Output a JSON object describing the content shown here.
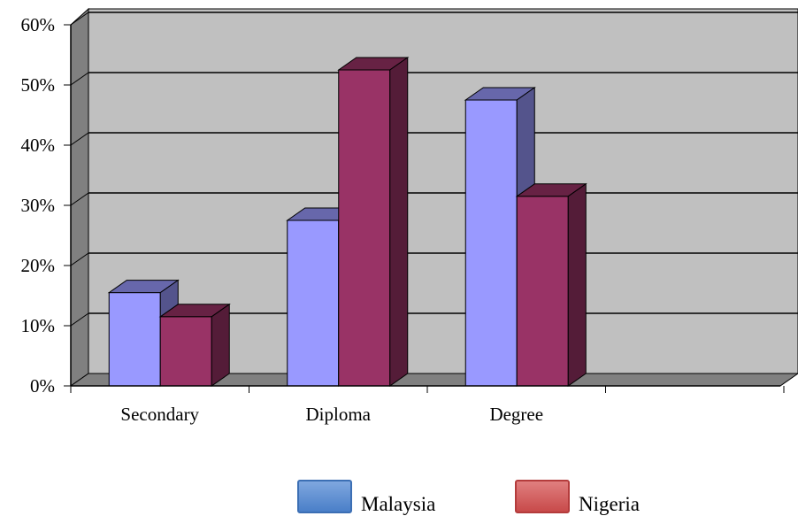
{
  "chart_data": {
    "type": "bar",
    "categories": [
      "Secondary",
      "Diploma",
      "Degree",
      ""
    ],
    "series": [
      {
        "name": "Malaysia",
        "values": [
          15.5,
          27.5,
          47.5,
          null
        ],
        "color": "#9999ff"
      },
      {
        "name": "Nigeria",
        "values": [
          11.5,
          52.5,
          31.5,
          null
        ],
        "color": "#993366"
      }
    ],
    "ylim": [
      0,
      60
    ],
    "yticks": [
      "0%",
      "10%",
      "20%",
      "30%",
      "40%",
      "50%",
      "60%"
    ],
    "ytick_values": [
      0,
      10,
      20,
      30,
      40,
      50,
      60
    ],
    "grid": true,
    "legend_position": "bottom",
    "plot_background": "#c0c0c0",
    "title": "",
    "xlabel": "",
    "ylabel": ""
  }
}
